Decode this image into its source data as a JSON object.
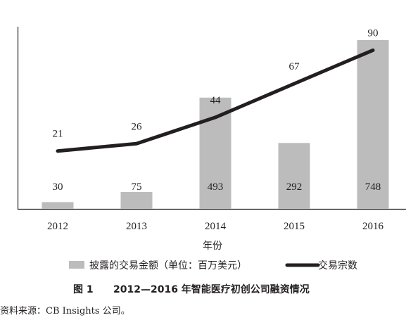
{
  "chart_data": {
    "type": "bar",
    "categories": [
      "2012",
      "2013",
      "2014",
      "2015",
      "2016"
    ],
    "xlabel": "年份",
    "series": [
      {
        "name": "披露的交易金额（单位：百万美元）",
        "type": "bar",
        "values": [
          30,
          75,
          493,
          292,
          748
        ],
        "color": "#bcbcbc"
      },
      {
        "name": "交易宗数",
        "type": "line",
        "values": [
          21,
          26,
          44,
          67,
          90
        ],
        "color": "#231f20"
      }
    ],
    "grid": false,
    "legend_position": "bottom"
  },
  "caption": {
    "number": "图 1",
    "text": "2012—2016 年智能医疗初创公司融资情况"
  },
  "source": "资料来源：CB Insights 公司。"
}
